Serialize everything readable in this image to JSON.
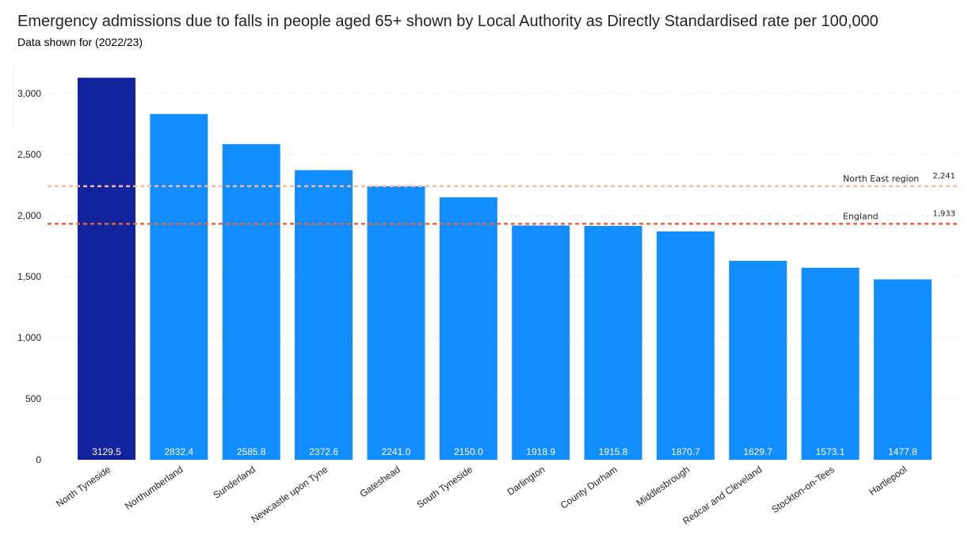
{
  "title": "Emergency admissions due to falls in people aged 65+ shown by Local Authority as Directly Standardised rate per 100,000",
  "subtitle": "Data shown for (2022/23)",
  "chart_data": {
    "type": "bar",
    "categories": [
      "North Tyneside",
      "Northumberland",
      "Sunderland",
      "Newcastle upon Tyne",
      "Gateshead",
      "South Tyneside",
      "Darlington",
      "County Durham",
      "Middlesbrough",
      "Redcar and Cleveland",
      "Stockton-on-Tees",
      "Hartlepool"
    ],
    "values": [
      3129.5,
      2832.4,
      2585.8,
      2372.6,
      2241.0,
      2150.0,
      1918.9,
      1915.8,
      1870.7,
      1629.7,
      1573.1,
      1477.8
    ],
    "data_labels": [
      "3129.5",
      "2832.4",
      "2585.8",
      "2372.6",
      "2241.0",
      "2150.0",
      "1918.9",
      "1915.8",
      "1870.7",
      "1629.7",
      "1573.1",
      "1477.8"
    ],
    "highlighted": "North Tyneside",
    "yticks": [
      0,
      500,
      1000,
      1500,
      2000,
      2500,
      3000
    ],
    "ytick_labels": [
      "0",
      "500",
      "1,000",
      "1,500",
      "2,000",
      "2,500",
      "3,000"
    ],
    "ylim": [
      0,
      3000
    ],
    "grid": true,
    "reference_lines": [
      {
        "name": "North East region",
        "value": 2241,
        "label": "2,241",
        "color": "#F5B9A0"
      },
      {
        "name": "England",
        "value": 1933,
        "label": "1,933",
        "color": "#E8663D"
      }
    ],
    "colors": {
      "highlight": "#12239E",
      "bar": "#118DFF"
    }
  }
}
